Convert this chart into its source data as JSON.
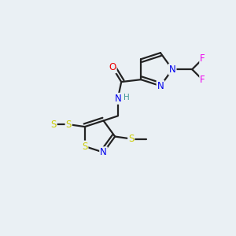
{
  "background_color": "#eaf0f4",
  "atom_colors": {
    "C": "#000000",
    "N": "#0000ee",
    "O": "#ee0000",
    "S": "#cccc00",
    "F": "#ee00ee",
    "H": "#449999"
  },
  "lw": 1.6,
  "fontsize": 8.5,
  "figsize": [
    3.0,
    3.0
  ],
  "dpi": 100
}
